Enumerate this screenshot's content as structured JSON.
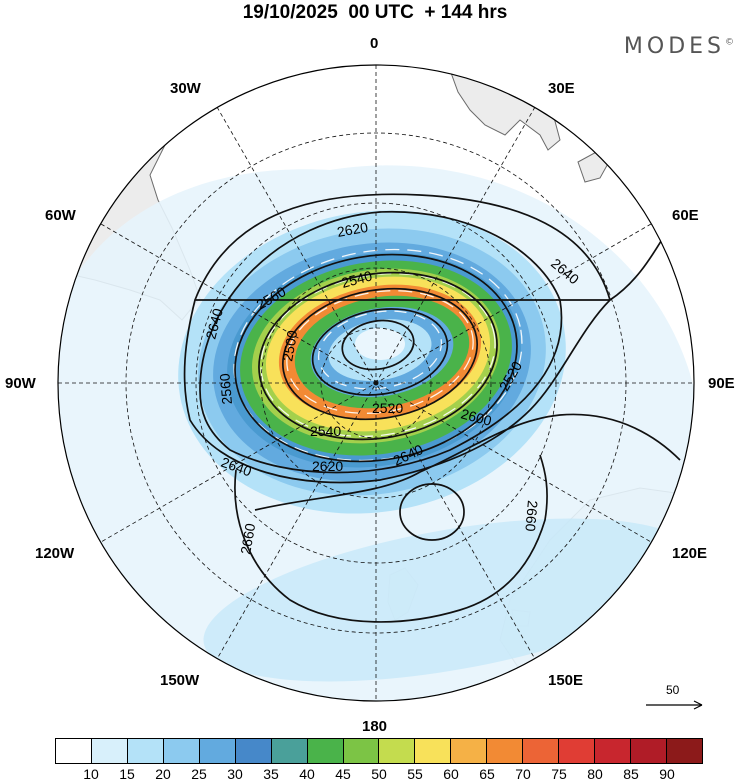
{
  "header": {
    "title": "19/10/2025  00 UTC  + 144 hrs",
    "brand": "MODES",
    "brand_mark": "©"
  },
  "map": {
    "projection": "south-polar-stereographic",
    "meridian_labels": [
      "0",
      "30E",
      "60E",
      "90E",
      "120E",
      "150E",
      "180",
      "150W",
      "120W",
      "90W",
      "60W",
      "30W"
    ],
    "contour_labels": [
      "2500",
      "2520",
      "2520",
      "2540",
      "2540",
      "2560",
      "2560",
      "2600",
      "2620",
      "2620",
      "2640",
      "2640",
      "2640",
      "2640",
      "2660",
      "2660"
    ],
    "vector_scale_label": "50"
  },
  "colorbar": {
    "ticks": [
      "10",
      "15",
      "20",
      "25",
      "30",
      "35",
      "40",
      "45",
      "50",
      "55",
      "60",
      "65",
      "70",
      "75",
      "80",
      "85",
      "90"
    ],
    "colors": [
      "#ffffff",
      "#d8f0fb",
      "#b4e2f8",
      "#8ccaef",
      "#62aadf",
      "#4688c9",
      "#4aa09a",
      "#4ab34a",
      "#7cc445",
      "#c4dc4e",
      "#f8e15a",
      "#f5b146",
      "#f28a34",
      "#ec6436",
      "#e03d34",
      "#c8262e",
      "#b01c27",
      "#8c1a1a"
    ]
  }
}
